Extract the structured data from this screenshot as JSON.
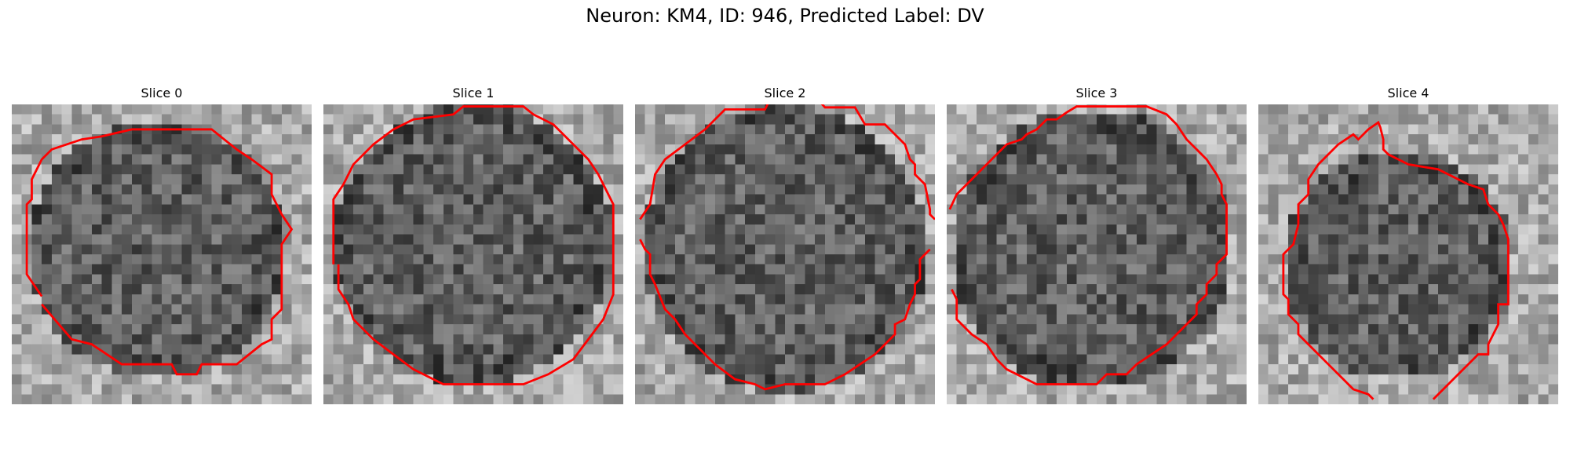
{
  "figure": {
    "title": "Neuron: KM4, ID: 946, Predicted Label: DV"
  },
  "colors": {
    "contour": "#ff0000",
    "background": "#ffffff"
  },
  "panels": [
    {
      "title": "Slice 0"
    },
    {
      "title": "Slice 1"
    },
    {
      "title": "Slice 2"
    },
    {
      "title": "Slice 3"
    },
    {
      "title": "Slice 4"
    }
  ]
}
